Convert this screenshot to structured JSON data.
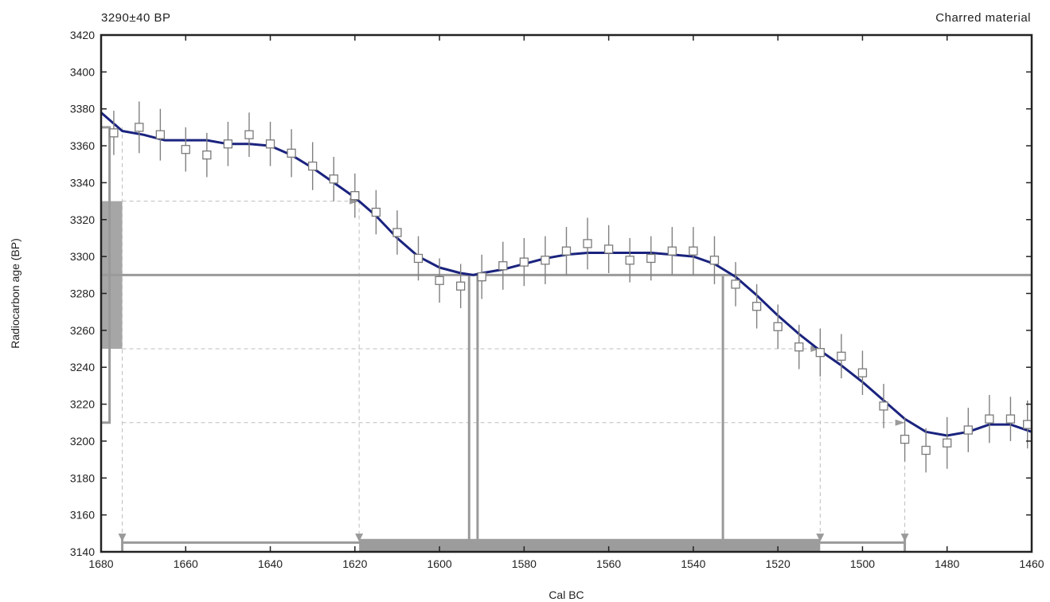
{
  "header": {
    "left": "3290±40 BP",
    "right": "Charred material"
  },
  "chart_data": {
    "type": "line",
    "title": "",
    "xlabel": "Cal BC",
    "ylabel": "Radiocarbon age (BP)",
    "xlim": [
      1680,
      1460
    ],
    "ylim": [
      3140,
      3420
    ],
    "xticks": [
      1680,
      1660,
      1640,
      1620,
      1600,
      1580,
      1560,
      1540,
      1520,
      1500,
      1480,
      1460
    ],
    "yticks": [
      3140,
      3160,
      3180,
      3200,
      3220,
      3240,
      3260,
      3280,
      3300,
      3320,
      3340,
      3360,
      3380,
      3400,
      3420
    ],
    "sample": {
      "age": 3290,
      "error": 40,
      "one_sigma_range": [
        3250,
        3330
      ],
      "two_sigma_range": [
        3210,
        3370
      ]
    },
    "calibration_curve": {
      "x": [
        1680,
        1675,
        1670,
        1665,
        1660,
        1655,
        1650,
        1645,
        1640,
        1635,
        1630,
        1625,
        1620,
        1615,
        1610,
        1605,
        1600,
        1595,
        1592,
        1590,
        1585,
        1580,
        1575,
        1570,
        1565,
        1560,
        1555,
        1550,
        1545,
        1540,
        1535,
        1530,
        1525,
        1520,
        1515,
        1510,
        1505,
        1500,
        1495,
        1490,
        1485,
        1480,
        1475,
        1470,
        1465,
        1460
      ],
      "y": [
        3378,
        3368,
        3366,
        3363,
        3363,
        3363,
        3361,
        3361,
        3360,
        3355,
        3348,
        3340,
        3332,
        3322,
        3310,
        3300,
        3294,
        3291,
        3290,
        3291,
        3293,
        3296,
        3299,
        3301,
        3302,
        3302,
        3302,
        3302,
        3301,
        3300,
        3296,
        3289,
        3279,
        3268,
        3258,
        3249,
        3241,
        3232,
        3222,
        3212,
        3205,
        3203,
        3205,
        3209,
        3209,
        3205
      ]
    },
    "data_points": {
      "x": [
        1677,
        1671,
        1666,
        1660,
        1655,
        1650,
        1645,
        1640,
        1635,
        1630,
        1625,
        1620,
        1615,
        1610,
        1605,
        1600,
        1595,
        1590,
        1585,
        1580,
        1575,
        1570,
        1565,
        1560,
        1555,
        1550,
        1545,
        1540,
        1535,
        1530,
        1525,
        1520,
        1515,
        1510,
        1505,
        1500,
        1495,
        1490,
        1485,
        1480,
        1475,
        1470,
        1465,
        1461
      ],
      "y": [
        3367,
        3370,
        3366,
        3358,
        3355,
        3361,
        3366,
        3361,
        3356,
        3349,
        3342,
        3333,
        3324,
        3313,
        3299,
        3287,
        3284,
        3289,
        3295,
        3297,
        3298,
        3303,
        3307,
        3304,
        3298,
        3299,
        3303,
        3303,
        3298,
        3285,
        3273,
        3262,
        3251,
        3248,
        3246,
        3237,
        3219,
        3201,
        3195,
        3199,
        3206,
        3212,
        3212,
        3209
      ],
      "error": [
        12,
        14,
        14,
        12,
        12,
        12,
        12,
        12,
        13,
        13,
        12,
        12,
        12,
        12,
        12,
        12,
        12,
        12,
        13,
        13,
        13,
        13,
        14,
        13,
        12,
        12,
        13,
        13,
        13,
        12,
        12,
        12,
        12,
        13,
        12,
        12,
        12,
        12,
        12,
        14,
        12,
        13,
        12,
        13
      ]
    },
    "age_line": 3290,
    "one_sigma_lines": [
      3250,
      3330
    ],
    "two_sigma_lines": [
      3210,
      3370
    ],
    "calendar_intercepts": [
      1593,
      1591,
      1533
    ],
    "calendar_ranges": {
      "one_sigma": [
        1619,
        1510
      ],
      "two_sigma": [
        1675,
        1490
      ]
    },
    "grid": false,
    "legend": "none"
  }
}
